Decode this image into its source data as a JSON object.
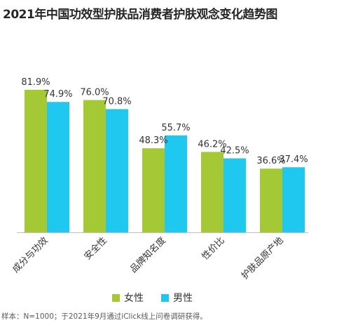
{
  "chart_data": {
    "type": "bar",
    "title": "2021年中国功效型护肤品消费者护肤观念变化趋势图",
    "categories": [
      "成分与功效",
      "安全性",
      "品牌知名度",
      "性价比",
      "护肤品原产地"
    ],
    "series": [
      {
        "name": "女性",
        "values": [
          81.9,
          76.0,
          48.3,
          46.2,
          36.6
        ],
        "labels": [
          "81.9%",
          "76.0%",
          "48.3%",
          "46.2%",
          "36.6%"
        ],
        "color": "#a5c934"
      },
      {
        "name": "男性",
        "values": [
          74.9,
          70.8,
          55.7,
          42.5,
          37.4
        ],
        "labels": [
          "74.9%",
          "70.8%",
          "55.7%",
          "42.5%",
          "37.4%"
        ],
        "color": "#1ec8ef"
      }
    ],
    "legend_position": "bottom",
    "grid": false,
    "ylim": [
      0,
      100
    ],
    "source": "样本：N=1000；于2021年9月通过iClick线上问卷调研获得。"
  }
}
